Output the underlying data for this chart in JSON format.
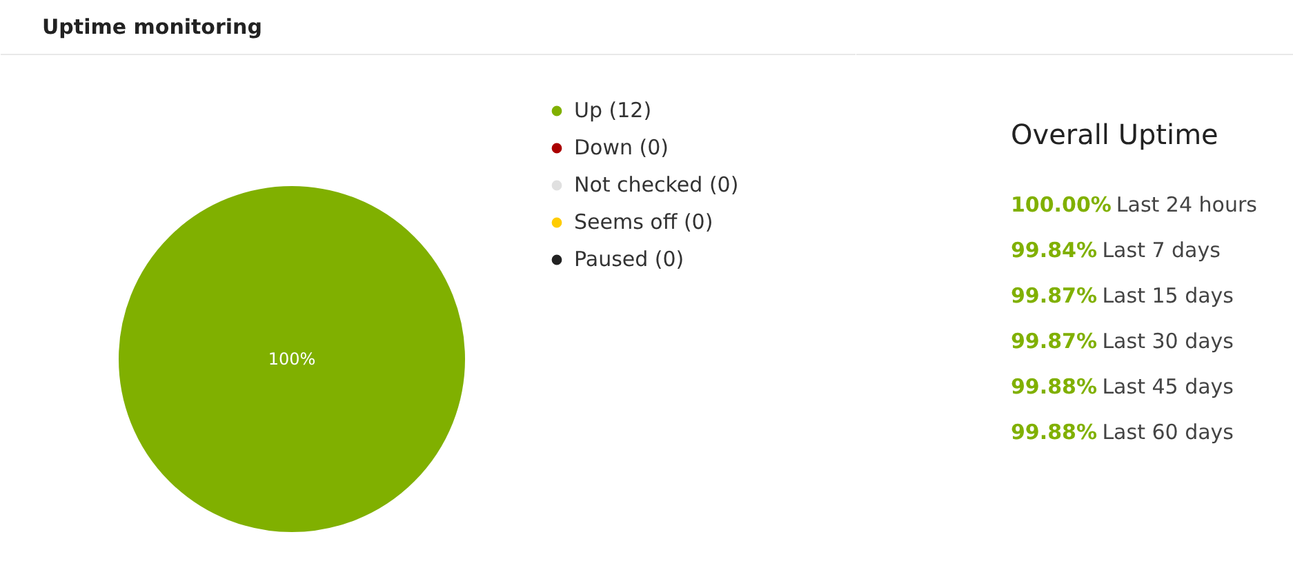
{
  "chart_data": [
    {
      "type": "pie",
      "title": "Uptime monitoring",
      "categories": [
        "Up (12)",
        "Down (0)",
        "Not checked (0)",
        "Seems off (0)",
        "Paused (0)"
      ],
      "values": [
        100,
        0,
        0,
        0,
        0
      ],
      "colors": [
        "#80b000",
        "#aa0000",
        "#e0e0e0",
        "#ffcc00",
        "#222222"
      ],
      "value_labels": [
        "100%",
        null,
        null,
        null,
        null
      ],
      "legend": "right"
    },
    {
      "type": "other",
      "title": "Overall Uptime",
      "annotations": [
        "100.00% Last 24 hours",
        "99.84% Last 7 days",
        "99.87% Last 15 days",
        "99.87% Last 30 days",
        "99.88% Last 45 days",
        "99.88% Last 60 days"
      ]
    }
  ]
}
